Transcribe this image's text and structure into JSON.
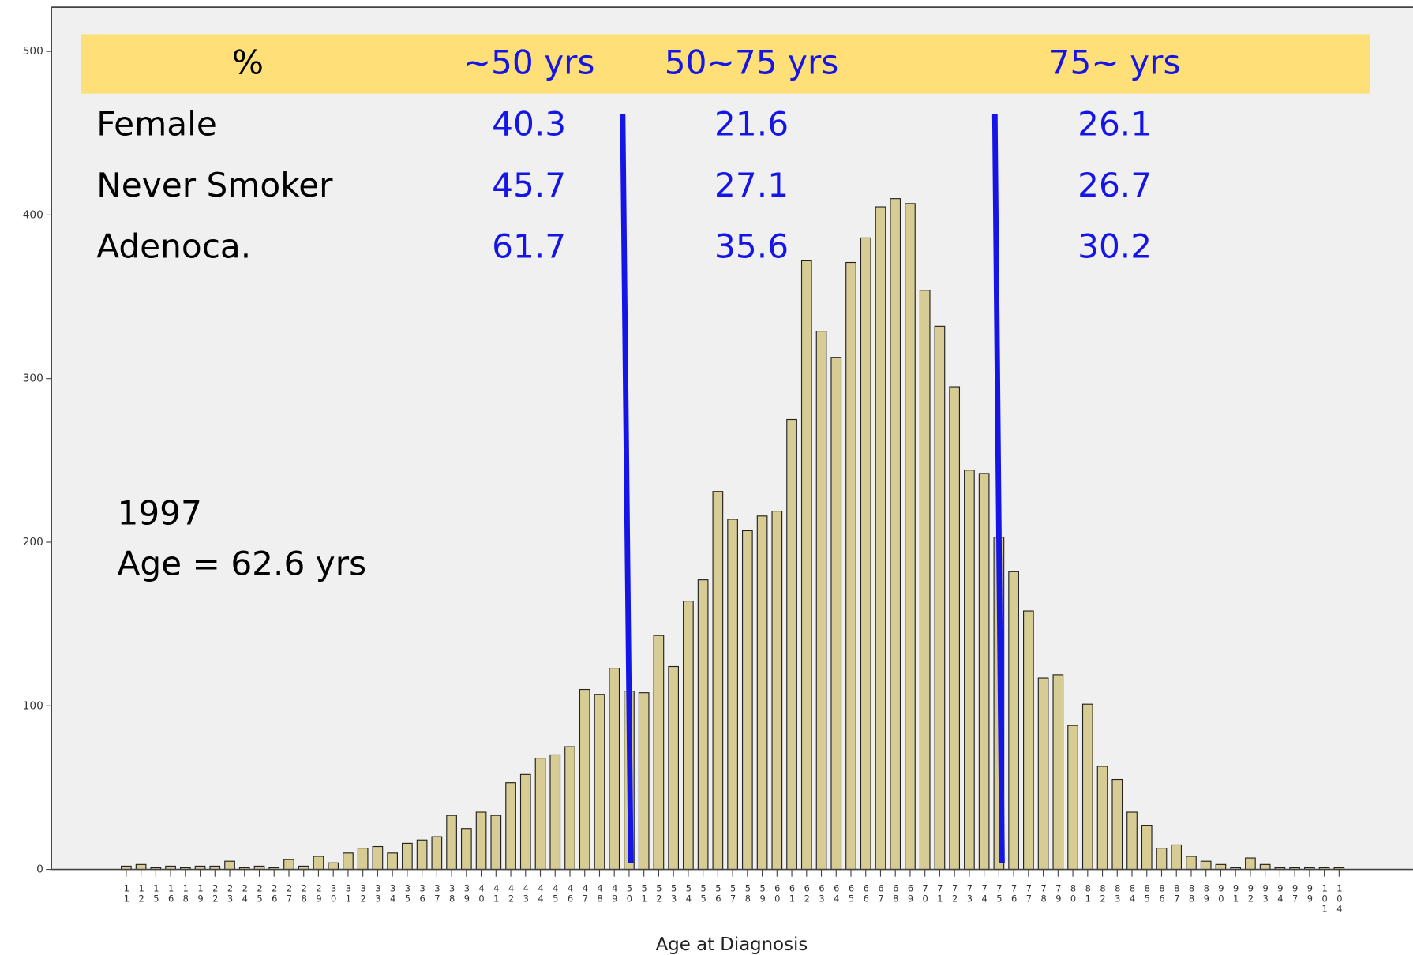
{
  "chart_data": {
    "type": "bar",
    "x_label": "Age at Diagnosis",
    "categories": [
      "11",
      "12",
      "15",
      "16",
      "18",
      "19",
      "22",
      "23",
      "24",
      "25",
      "26",
      "27",
      "28",
      "29",
      "30",
      "31",
      "32",
      "33",
      "34",
      "35",
      "36",
      "37",
      "38",
      "39",
      "40",
      "41",
      "42",
      "43",
      "44",
      "45",
      "46",
      "47",
      "48",
      "49",
      "50",
      "51",
      "52",
      "53",
      "54",
      "55",
      "56",
      "57",
      "58",
      "59",
      "60",
      "61",
      "62",
      "63",
      "64",
      "65",
      "66",
      "67",
      "68",
      "69",
      "70",
      "71",
      "72",
      "73",
      "74",
      "75",
      "76",
      "77",
      "78",
      "79",
      "80",
      "81",
      "82",
      "83",
      "84",
      "85",
      "86",
      "87",
      "88",
      "89",
      "90",
      "91",
      "92",
      "93",
      "94",
      "97",
      "99",
      "101",
      "104"
    ],
    "values": [
      2,
      3,
      1,
      2,
      1,
      2,
      2,
      5,
      1,
      2,
      1,
      6,
      2,
      8,
      4,
      10,
      13,
      14,
      10,
      16,
      18,
      20,
      33,
      25,
      35,
      33,
      53,
      58,
      68,
      70,
      75,
      110,
      107,
      123,
      109,
      108,
      143,
      124,
      164,
      177,
      231,
      214,
      207,
      216,
      219,
      275,
      372,
      329,
      313,
      371,
      386,
      405,
      410,
      407,
      354,
      332,
      295,
      244,
      242,
      203,
      182,
      158,
      117,
      119,
      88,
      101,
      63,
      55,
      35,
      27,
      13,
      15,
      8,
      5,
      3,
      1,
      7,
      3,
      1,
      1,
      1,
      1,
      1
    ],
    "color": "#d6cc94",
    "ylim": [
      0,
      527
    ],
    "yticks": [
      0,
      100,
      200,
      300,
      400,
      500
    ],
    "table": {
      "header": [
        "%",
        "~50 yrs",
        "50~75 yrs",
        "75~ yrs"
      ],
      "rows": [
        [
          "Female",
          40.3,
          21.6,
          26.1
        ],
        [
          "Never Smoker",
          45.7,
          27.1,
          26.7
        ],
        [
          "Adenoca.",
          61.7,
          35.6,
          30.2
        ]
      ]
    },
    "annotations": [
      "1997",
      "Age = 62.6 yrs"
    ]
  }
}
